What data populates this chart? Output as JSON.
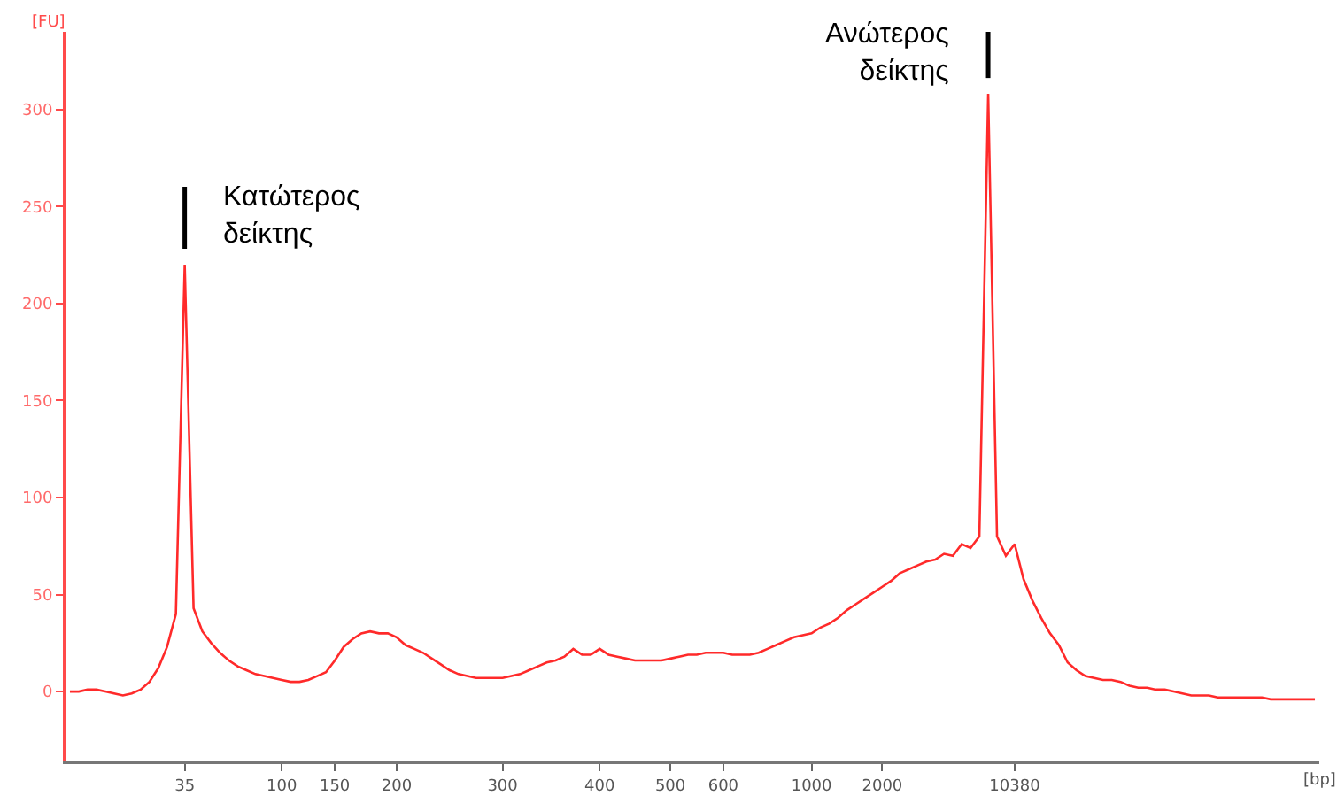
{
  "chart_data": {
    "type": "line",
    "ylabel": "[FU]",
    "xlabel": "[bp]",
    "color": "#ff2a2a",
    "categories": [
      null,
      null,
      null,
      null,
      null,
      null,
      null,
      null,
      null,
      null,
      null,
      null,
      null,
      "35",
      null,
      null,
      null,
      null,
      null,
      null,
      null,
      null,
      null,
      null,
      "100",
      null,
      null,
      null,
      null,
      null,
      "150",
      null,
      null,
      null,
      null,
      null,
      null,
      "200",
      null,
      null,
      null,
      null,
      null,
      null,
      null,
      null,
      null,
      null,
      null,
      "300",
      null,
      null,
      null,
      null,
      null,
      null,
      null,
      null,
      null,
      null,
      "400",
      null,
      null,
      null,
      null,
      null,
      null,
      null,
      "500",
      null,
      null,
      null,
      null,
      null,
      "600",
      null,
      null,
      null,
      null,
      null,
      null,
      null,
      null,
      null,
      "1000",
      null,
      null,
      null,
      null,
      null,
      null,
      null,
      "2000",
      null,
      null,
      null,
      null,
      null,
      null,
      null,
      null,
      null,
      null,
      null,
      null,
      null,
      null,
      "10380",
      null,
      null,
      null,
      null,
      null,
      null,
      null,
      null,
      null,
      null,
      null,
      null,
      null,
      null,
      null,
      null,
      null,
      null,
      null,
      null,
      null,
      null,
      null,
      null,
      null,
      null,
      null,
      null,
      null,
      null,
      null,
      null,
      null,
      null
    ],
    "values": [
      0,
      0,
      1,
      1,
      0,
      -1,
      -2,
      -1,
      1,
      5,
      12,
      23,
      40,
      220,
      43,
      31,
      25,
      20,
      16,
      13,
      11,
      9,
      8,
      7,
      6,
      5,
      5,
      6,
      8,
      10,
      16,
      23,
      27,
      30,
      31,
      30,
      30,
      28,
      24,
      22,
      20,
      17,
      14,
      11,
      9,
      8,
      7,
      7,
      7,
      7,
      8,
      9,
      11,
      13,
      15,
      16,
      18,
      22,
      19,
      19,
      22,
      19,
      18,
      17,
      16,
      16,
      16,
      16,
      17,
      18,
      19,
      19,
      20,
      20,
      20,
      19,
      19,
      19,
      20,
      22,
      24,
      26,
      28,
      29,
      30,
      33,
      35,
      38,
      42,
      45,
      48,
      51,
      54,
      57,
      61,
      63,
      65,
      67,
      68,
      71,
      70,
      76,
      74,
      80,
      308,
      80,
      70,
      76,
      58,
      47,
      38,
      30,
      24,
      15,
      11,
      8,
      7,
      6,
      6,
      5,
      3,
      2,
      2,
      1,
      1,
      0,
      -1,
      -2,
      -2,
      -2,
      -3,
      -3,
      -3,
      -3,
      -3,
      -3,
      -4,
      -4,
      -4,
      -4,
      -4,
      -4
    ],
    "ylim": [
      -36,
      340
    ],
    "yticks": [
      0,
      50,
      100,
      150,
      200,
      250,
      300
    ],
    "annotations": [
      {
        "text": "Κατώτερος\nδείκτης",
        "x": "35",
        "y": 220
      },
      "Ανώτερος\nδείκτης"
    ]
  }
}
